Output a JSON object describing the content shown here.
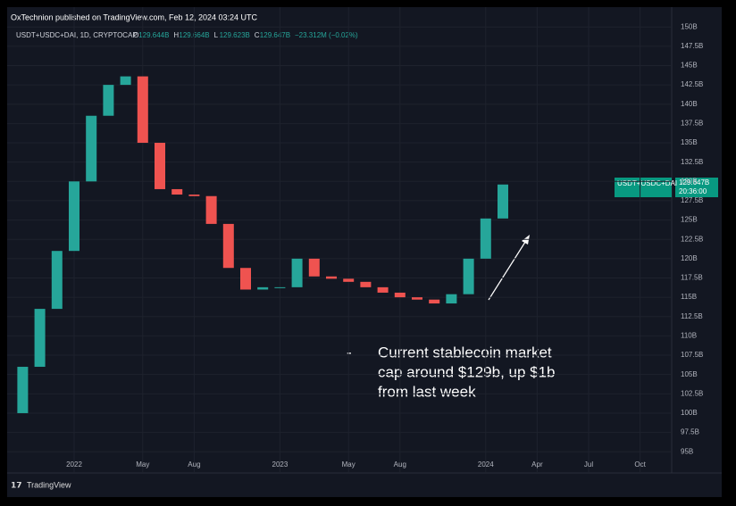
{
  "header": "OxTechnion published on TradingView.com, Feb 12, 2024 03:24 UTC",
  "legend": {
    "symbol": "USDT+USDC+DAI, 1D, CRYPTOCAP",
    "ohlc": [
      [
        "O",
        "129.644B"
      ],
      [
        "H",
        "129.664B"
      ],
      [
        "L",
        "129.623B"
      ],
      [
        "C",
        "129.647B"
      ]
    ],
    "change": "−23.312M (−0.02%)"
  },
  "price_tag": {
    "symbol": "USDT+USDC+DAI",
    "price": "129.647B",
    "time": "20:36:00"
  },
  "annotation": {
    "bullet": "-",
    "lines": [
      "Current stablecoin market",
      "cap around $129b, up $1b",
      "from last week"
    ]
  },
  "footer": "TradingView",
  "chart_data": {
    "type": "candlestick",
    "x": [
      "2021-10",
      "2021-11",
      "2021-12",
      "2022-01",
      "2022-02",
      "2022-03",
      "2022-04",
      "2022-05",
      "2022-06",
      "2022-07",
      "2022-08",
      "2022-09",
      "2022-10",
      "2022-11",
      "2022-12",
      "2023-01",
      "2023-02",
      "2023-03",
      "2023-04",
      "2023-05",
      "2023-06",
      "2023-07",
      "2023-08",
      "2023-09",
      "2023-10",
      "2023-11",
      "2023-12",
      "2024-01",
      "2024-02"
    ],
    "open": [
      100,
      106,
      113.5,
      121,
      130,
      138.5,
      142.5,
      143.6,
      135,
      129,
      128.3,
      128.1,
      124.5,
      118.8,
      116,
      116.3,
      116.3,
      120,
      117.7,
      117.4,
      117,
      116.3,
      115.6,
      115,
      114.7,
      114.2,
      115.4,
      120,
      125.2
    ],
    "close": [
      106,
      113.5,
      121,
      130,
      138.5,
      142.5,
      143.6,
      135,
      129,
      128.3,
      128.1,
      124.5,
      118.8,
      116,
      116.3,
      116.3,
      120,
      117.7,
      117.4,
      117,
      116.3,
      115.6,
      115,
      114.7,
      114.2,
      115.4,
      120,
      125.2,
      129.6
    ],
    "up_color": "#26a69a",
    "down_color": "#ef5350",
    "ylim": [
      92.6,
      150.6
    ],
    "yticks": [
      {
        "value": 95,
        "label": "95B"
      },
      {
        "value": 97.5,
        "label": "97.5B"
      },
      {
        "value": 100,
        "label": "100B"
      },
      {
        "value": 102.5,
        "label": "102.5B"
      },
      {
        "value": 105,
        "label": "105B"
      },
      {
        "value": 107.5,
        "label": "107.5B"
      },
      {
        "value": 110,
        "label": "110B"
      },
      {
        "value": 112.5,
        "label": "112.5B"
      },
      {
        "value": 115,
        "label": "115B"
      },
      {
        "value": 117.5,
        "label": "117.5B"
      },
      {
        "value": 120,
        "label": "120B"
      },
      {
        "value": 122.5,
        "label": "122.5B"
      },
      {
        "value": 125,
        "label": "125B"
      },
      {
        "value": 127.5,
        "label": "127.5B"
      },
      {
        "value": 130,
        "label": "130B"
      },
      {
        "value": 132.5,
        "label": "132.5B"
      },
      {
        "value": 135,
        "label": "135B"
      },
      {
        "value": 137.5,
        "label": "137.5B"
      },
      {
        "value": 140,
        "label": "140B"
      },
      {
        "value": 142.5,
        "label": "142.5B"
      },
      {
        "value": 145,
        "label": "145B"
      },
      {
        "value": 147.5,
        "label": "147.5B"
      },
      {
        "value": 150,
        "label": "150B"
      }
    ],
    "xticks": [
      {
        "value": "2022-01",
        "label": "2022"
      },
      {
        "value": "2022-05",
        "label": "May"
      },
      {
        "value": "2022-08",
        "label": "Aug"
      },
      {
        "value": "2023-01",
        "label": "2023"
      },
      {
        "value": "2023-05",
        "label": "May"
      },
      {
        "value": "2023-08",
        "label": "Aug"
      },
      {
        "value": "2024-01",
        "label": "2024"
      },
      {
        "value": "2024-04",
        "label": "Apr"
      },
      {
        "value": "2024-07",
        "label": "Jul"
      },
      {
        "value": "2024-10",
        "label": "Oct"
      }
    ],
    "grid": true
  }
}
